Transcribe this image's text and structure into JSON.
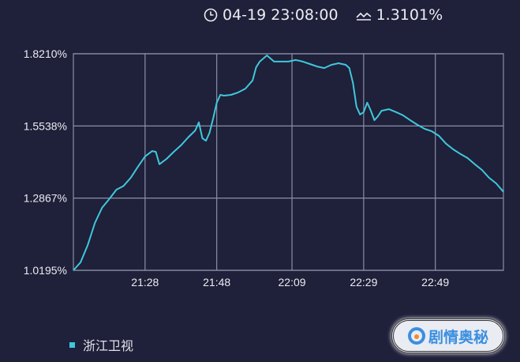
{
  "header": {
    "time": "04-19 23:08:00",
    "value": "1.3101%",
    "time_icon": "clock-icon",
    "value_icon": "trend-line-icon"
  },
  "legend": {
    "label": "浙江卫视"
  },
  "logo": {
    "text": "剧情奥秘"
  },
  "colors": {
    "background": "#1f2039",
    "line": "#3fc8dc",
    "grid": "#8a8fa8"
  },
  "chart_data": {
    "type": "line",
    "title": "",
    "xlabel": "",
    "ylabel": "",
    "xlim": [
      "21:08",
      "23:08"
    ],
    "ylim": [
      1.0195,
      1.821
    ],
    "x_ticks": [
      "21:28",
      "21:48",
      "22:09",
      "22:29",
      "22:49"
    ],
    "y_ticks": [
      "1.0195%",
      "1.2867%",
      "1.5538%",
      "1.8210%"
    ],
    "y_tick_values": [
      1.0195,
      1.2867,
      1.5538,
      1.821
    ],
    "grid": true,
    "legend_position": "bottom-left",
    "series": [
      {
        "name": "浙江卫视",
        "x": [
          "21:08",
          "21:10",
          "21:12",
          "21:14",
          "21:16",
          "21:18",
          "21:20",
          "21:22",
          "21:24",
          "21:26",
          "21:28",
          "21:30",
          "21:31",
          "21:32",
          "21:34",
          "21:36",
          "21:38",
          "21:40",
          "21:42",
          "21:43",
          "21:44",
          "21:45",
          "21:46",
          "21:47",
          "21:48",
          "21:49",
          "21:50",
          "21:52",
          "21:54",
          "21:56",
          "21:58",
          "21:59",
          "22:00",
          "22:02",
          "22:04",
          "22:08",
          "22:10",
          "22:12",
          "22:14",
          "22:16",
          "22:18",
          "22:20",
          "22:22",
          "22:24",
          "22:25",
          "22:26",
          "22:27",
          "22:28",
          "22:29",
          "22:30",
          "22:31",
          "22:32",
          "22:33",
          "22:34",
          "22:36",
          "22:38",
          "22:40",
          "22:42",
          "22:44",
          "22:46",
          "22:48",
          "22:50",
          "22:52",
          "22:54",
          "22:56",
          "22:58",
          "23:00",
          "23:02",
          "23:04",
          "23:06",
          "23:08"
        ],
        "values": [
          1.0195,
          1.049,
          1.113,
          1.195,
          1.251,
          1.283,
          1.318,
          1.332,
          1.362,
          1.403,
          1.441,
          1.461,
          1.458,
          1.412,
          1.432,
          1.458,
          1.482,
          1.511,
          1.537,
          1.567,
          1.508,
          1.499,
          1.529,
          1.581,
          1.64,
          1.669,
          1.666,
          1.669,
          1.678,
          1.692,
          1.722,
          1.771,
          1.792,
          1.815,
          1.792,
          1.792,
          1.798,
          1.792,
          1.783,
          1.774,
          1.768,
          1.78,
          1.786,
          1.78,
          1.768,
          1.713,
          1.625,
          1.596,
          1.605,
          1.64,
          1.61,
          1.575,
          1.59,
          1.61,
          1.616,
          1.605,
          1.593,
          1.575,
          1.558,
          1.543,
          1.534,
          1.517,
          1.488,
          1.467,
          1.45,
          1.435,
          1.412,
          1.391,
          1.362,
          1.341,
          1.3101
        ]
      }
    ]
  }
}
